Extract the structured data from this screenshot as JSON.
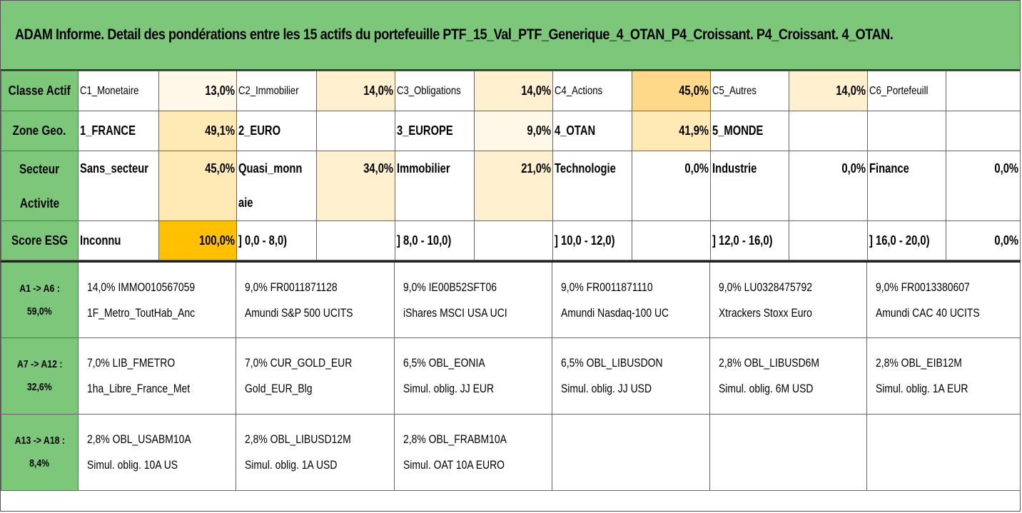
{
  "title": "ADAM Informe. Detail des pondérations entre les 15 actifs du portefeuille PTF_15_Val_PTF_Generique_4_OTAN_P4_Croissant. P4_Croissant. 4_OTAN.",
  "colors": {
    "header_green": "#7dc77a",
    "heat_max": "#ffc000",
    "heat_mid": "#fed98a",
    "heat_low": "#fff1cf"
  },
  "summary": {
    "classe": {
      "label": "Classe Actif",
      "cells": [
        {
          "name": "C1_Monetaire",
          "pct": "13,0%"
        },
        {
          "name": "C2_Immobilier",
          "pct": "14,0%"
        },
        {
          "name": "C3_Obligations",
          "pct": "14,0%"
        },
        {
          "name": "C4_Actions",
          "pct": "45,0%"
        },
        {
          "name": "C5_Autres",
          "pct": "14,0%"
        },
        {
          "name": "C6_Portefeuill",
          "pct": ""
        }
      ]
    },
    "zone": {
      "label": "Zone Geo.",
      "cells": [
        {
          "name": "1_FRANCE",
          "pct": "49,1%"
        },
        {
          "name": "2_EURO",
          "pct": ""
        },
        {
          "name": "3_EUROPE",
          "pct": "9,0%"
        },
        {
          "name": "4_OTAN",
          "pct": "41,9%"
        },
        {
          "name": "5_MONDE",
          "pct": ""
        },
        {
          "name": "",
          "pct": ""
        }
      ]
    },
    "secteur": {
      "label_line1": "Secteur",
      "label_line2": "Activite",
      "cells": [
        {
          "name": "Sans_secteur",
          "name2": "",
          "pct": "45,0%"
        },
        {
          "name": "Quasi_monn",
          "name2": "aie",
          "pct": "34,0%"
        },
        {
          "name": "Immobilier",
          "name2": "",
          "pct": "21,0%"
        },
        {
          "name": "Technologie",
          "name2": "",
          "pct": "0,0%"
        },
        {
          "name": "Industrie",
          "name2": "",
          "pct": "0,0%"
        },
        {
          "name": "Finance",
          "name2": "",
          "pct": "0,0%"
        }
      ]
    },
    "esg": {
      "label": "Score ESG",
      "cells": [
        {
          "name": "Inconnu",
          "pct": "100,0%"
        },
        {
          "name": "] 0,0 - 8,0)",
          "pct": ""
        },
        {
          "name": "] 8,0 - 10,0)",
          "pct": ""
        },
        {
          "name": "] 10,0 - 12,0)",
          "pct": ""
        },
        {
          "name": "] 12,0 - 16,0)",
          "pct": ""
        },
        {
          "name": "] 16,0 - 20,0)",
          "pct": "0,0%"
        }
      ]
    }
  },
  "asset_groups": [
    {
      "range": "A1 -> A6 :",
      "total": "59,0%",
      "assets": [
        {
          "line1": "14,0% IMMO010567059",
          "line2": "1F_Metro_ToutHab_Anc"
        },
        {
          "line1": "9,0% FR0011871128",
          "line2": "Amundi S&P 500 UCITS"
        },
        {
          "line1": "9,0% IE00B52SFT06",
          "line2": "iShares MSCI USA UCI"
        },
        {
          "line1": "9,0% FR0011871110",
          "line2": "Amundi Nasdaq-100 UC"
        },
        {
          "line1": "9,0% LU0328475792",
          "line2": "Xtrackers Stoxx Euro"
        },
        {
          "line1": "9,0% FR0013380607",
          "line2": "Amundi CAC 40 UCITS"
        }
      ]
    },
    {
      "range": "A7 -> A12 :",
      "total": "32,6%",
      "assets": [
        {
          "line1": "7,0% LIB_FMETRO",
          "line2": "1ha_Libre_France_Met"
        },
        {
          "line1": "7,0% CUR_GOLD_EUR",
          "line2": "Gold_EUR_Blg"
        },
        {
          "line1": "6,5% OBL_EONIA",
          "line2": "Simul. oblig. JJ EUR"
        },
        {
          "line1": "6,5% OBL_LIBUSDON",
          "line2": "Simul. oblig. JJ USD"
        },
        {
          "line1": "2,8% OBL_LIBUSD6M",
          "line2": "Simul. oblig. 6M USD"
        },
        {
          "line1": "2,8% OBL_EIB12M",
          "line2": "Simul. oblig. 1A EUR"
        }
      ]
    },
    {
      "range": "A13 -> A18 :",
      "total": "8,4%",
      "assets": [
        {
          "line1": "2,8% OBL_USABM10A",
          "line2": "Simul. oblig. 10A US"
        },
        {
          "line1": "2,8% OBL_LIBUSD12M",
          "line2": "Simul. oblig. 1A USD"
        },
        {
          "line1": "2,8% OBL_FRABM10A",
          "line2": "Simul. OAT 10A EURO"
        },
        {
          "line1": "",
          "line2": ""
        },
        {
          "line1": "",
          "line2": ""
        },
        {
          "line1": "",
          "line2": ""
        }
      ]
    }
  ]
}
